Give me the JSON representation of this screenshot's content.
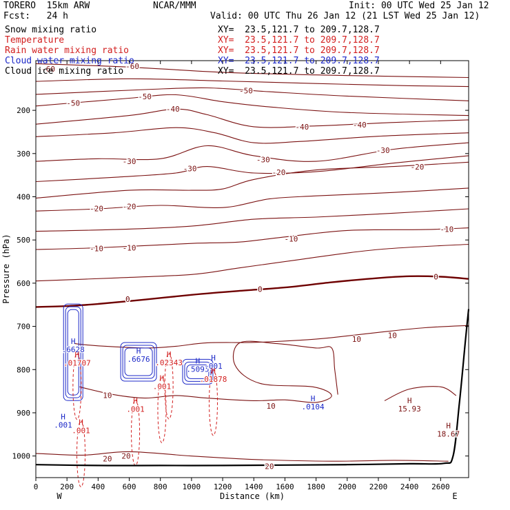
{
  "header": {
    "model": "TORERO  15km ARW",
    "center": "NCAR/MMM",
    "init": "Init: 00 UTC Wed 25 Jan 12",
    "fcst": "Fcst:   24 h",
    "valid": "Valid: 00 UTC Thu 26 Jan 12 (21 LST Wed 25 Jan 12)"
  },
  "colors": {
    "temperature": "#7a1010",
    "freezing": "#6e0000",
    "rain": "#d21e1e",
    "cloud_water": "#1c28c8",
    "terrain": "#000000"
  },
  "legend": [
    {
      "field": "Snow mixing ratio",
      "xy": "XY=  23.5,121.7 to 209.7,128.7",
      "color": "#000000"
    },
    {
      "field": "Temperature",
      "xy": "XY=  23.5,121.7 to 209.7,128.7",
      "color": "#d21e1e"
    },
    {
      "field": "Rain water mixing ratio",
      "xy": "XY=  23.5,121.7 to 209.7,128.7",
      "color": "#d21e1e"
    },
    {
      "field": "Cloud water mixing ratio",
      "xy": "XY=  23.5,121.7 to 209.7,128.7",
      "color": "#1c28c8"
    },
    {
      "field": "Cloud ice mixing ratio",
      "xy": "XY=  23.5,121.7 to 209.7,128.7",
      "color": "#000000"
    }
  ],
  "chart_data": {
    "type": "line",
    "xlabel": "Distance (km)",
    "ylabel": "Pressure (hPa)",
    "xlim": [
      0,
      2780
    ],
    "ylim": [
      1050,
      85
    ],
    "x_ticks": [
      0,
      200,
      400,
      600,
      800,
      1000,
      1200,
      1400,
      1600,
      1800,
      2000,
      2200,
      2400,
      2600
    ],
    "y_ticks": [
      200,
      300,
      400,
      500,
      600,
      700,
      800,
      900,
      1000
    ],
    "end_labels": {
      "left": "W",
      "right": "E"
    },
    "temperature_isotherms": [
      {
        "level": -60,
        "points": [
          [
            0,
            92
          ],
          [
            600,
            100
          ],
          [
            1200,
            112
          ],
          [
            1800,
            118
          ],
          [
            2400,
            122
          ],
          [
            2780,
            124
          ]
        ],
        "labels": [
          {
            "x": 80,
            "p": 104,
            "text": "-60"
          },
          {
            "x": 620,
            "p": 98,
            "text": "-60"
          }
        ]
      },
      {
        "level": -60,
        "points": [
          [
            0,
            133
          ],
          [
            600,
            127
          ],
          [
            1200,
            132
          ],
          [
            1800,
            138
          ],
          [
            2400,
            143
          ],
          [
            2780,
            145
          ]
        ]
      },
      {
        "level": -50,
        "points": [
          [
            0,
            163
          ],
          [
            700,
            152
          ],
          [
            1100,
            148
          ],
          [
            1500,
            157
          ],
          [
            2000,
            167
          ],
          [
            2780,
            178
          ]
        ],
        "labels": [
          {
            "x": 1350,
            "p": 154,
            "text": "-50"
          }
        ]
      },
      {
        "level": -50,
        "points": [
          [
            0,
            190
          ],
          [
            600,
            172
          ],
          [
            900,
            164
          ],
          [
            1200,
            180
          ],
          [
            1500,
            192
          ],
          [
            2000,
            205
          ],
          [
            2780,
            212
          ]
        ],
        "labels": [
          {
            "x": 240,
            "p": 183,
            "text": "-50"
          },
          {
            "x": 700,
            "p": 168,
            "text": "-50"
          }
        ]
      },
      {
        "level": -40,
        "points": [
          [
            0,
            232
          ],
          [
            600,
            212
          ],
          [
            900,
            197
          ],
          [
            1100,
            210
          ],
          [
            1400,
            238
          ],
          [
            1800,
            236
          ],
          [
            2300,
            228
          ],
          [
            2780,
            222
          ]
        ],
        "labels": [
          {
            "x": 880,
            "p": 197,
            "text": "-40"
          },
          {
            "x": 1710,
            "p": 238,
            "text": "-40"
          },
          {
            "x": 2080,
            "p": 233,
            "text": "-40"
          }
        ]
      },
      {
        "level": -40,
        "points": [
          [
            0,
            261
          ],
          [
            500,
            252
          ],
          [
            900,
            240
          ],
          [
            1150,
            252
          ],
          [
            1400,
            275
          ],
          [
            1700,
            272
          ],
          [
            2200,
            260
          ],
          [
            2780,
            252
          ]
        ]
      },
      {
        "level": -30,
        "points": [
          [
            0,
            318
          ],
          [
            400,
            312
          ],
          [
            800,
            312
          ],
          [
            1100,
            282
          ],
          [
            1400,
            305
          ],
          [
            1800,
            318
          ],
          [
            2300,
            290
          ],
          [
            2780,
            275
          ]
        ],
        "labels": [
          {
            "x": 600,
            "p": 318,
            "text": "-30"
          },
          {
            "x": 1460,
            "p": 314,
            "text": "-30"
          },
          {
            "x": 2230,
            "p": 292,
            "text": "-30"
          }
        ]
      },
      {
        "level": -30,
        "points": [
          [
            0,
            365
          ],
          [
            500,
            355
          ],
          [
            900,
            345
          ],
          [
            1100,
            330
          ],
          [
            1400,
            345
          ],
          [
            1800,
            342
          ],
          [
            2300,
            322
          ],
          [
            2780,
            305
          ]
        ],
        "labels": [
          {
            "x": 990,
            "p": 335,
            "text": "-30"
          }
        ]
      },
      {
        "level": -20,
        "points": [
          [
            0,
            403
          ],
          [
            600,
            385
          ],
          [
            1000,
            385
          ],
          [
            1200,
            382
          ],
          [
            1400,
            360
          ],
          [
            1800,
            338
          ],
          [
            2300,
            330
          ],
          [
            2780,
            320
          ]
        ],
        "labels": [
          {
            "x": 1560,
            "p": 343,
            "text": "-20"
          },
          {
            "x": 2450,
            "p": 331,
            "text": "-20"
          }
        ]
      },
      {
        "level": -20,
        "points": [
          [
            0,
            433
          ],
          [
            400,
            428
          ],
          [
            800,
            420
          ],
          [
            1200,
            425
          ],
          [
            1500,
            405
          ],
          [
            1800,
            398
          ],
          [
            2300,
            390
          ],
          [
            2780,
            380
          ]
        ],
        "labels": [
          {
            "x": 390,
            "p": 427,
            "text": "-20"
          },
          {
            "x": 600,
            "p": 422,
            "text": "-20"
          }
        ]
      },
      {
        "level": -10,
        "points": [
          [
            0,
            480
          ],
          [
            500,
            476
          ],
          [
            1000,
            468
          ],
          [
            1400,
            452
          ],
          [
            1800,
            447
          ],
          [
            2300,
            438
          ],
          [
            2780,
            428
          ]
        ]
      },
      {
        "level": -10,
        "points": [
          [
            0,
            522
          ],
          [
            400,
            518
          ],
          [
            1000,
            508
          ],
          [
            1300,
            505
          ],
          [
            1600,
            493
          ],
          [
            2000,
            478
          ],
          [
            2500,
            476
          ],
          [
            2780,
            472
          ]
        ],
        "labels": [
          {
            "x": 390,
            "p": 520,
            "text": "-10"
          },
          {
            "x": 600,
            "p": 518,
            "text": "-10"
          },
          {
            "x": 1640,
            "p": 497,
            "text": "-10"
          },
          {
            "x": 2640,
            "p": 475,
            "text": "-10"
          }
        ]
      },
      {
        "level": -10,
        "points": [
          [
            0,
            595
          ],
          [
            500,
            588
          ],
          [
            1000,
            580
          ],
          [
            1300,
            565
          ],
          [
            1700,
            545
          ],
          [
            2200,
            522
          ],
          [
            2780,
            510
          ]
        ]
      },
      {
        "level": 10,
        "points": [
          [
            250,
            740
          ],
          [
            400,
            745
          ],
          [
            700,
            750
          ],
          [
            900,
            746
          ],
          [
            1100,
            738
          ],
          [
            1400,
            737
          ],
          [
            1700,
            732
          ],
          [
            1900,
            726
          ],
          [
            2200,
            714
          ],
          [
            2500,
            703
          ],
          [
            2780,
            698
          ]
        ],
        "labels": [
          {
            "x": 2060,
            "p": 729,
            "text": "10"
          },
          {
            "x": 2290,
            "p": 721,
            "text": "10"
          }
        ]
      },
      {
        "level": 10,
        "points": [
          [
            280,
            840
          ],
          [
            500,
            858
          ],
          [
            700,
            866
          ],
          [
            900,
            860
          ],
          [
            1100,
            866
          ],
          [
            1400,
            872
          ],
          [
            1600,
            870
          ],
          [
            1800,
            876
          ],
          [
            1900,
            860
          ],
          [
            1780,
            840
          ],
          [
            1440,
            832
          ],
          [
            1280,
            790
          ],
          [
            1310,
            738
          ],
          [
            1550,
            740
          ],
          [
            1800,
            750
          ],
          [
            1900,
            750
          ],
          [
            1920,
            800
          ],
          [
            1940,
            858
          ]
        ],
        "labels": [
          {
            "x": 460,
            "p": 859,
            "text": "10"
          },
          {
            "x": 1510,
            "p": 884,
            "text": "10"
          }
        ]
      },
      {
        "level": 20,
        "points": [
          [
            0,
            994
          ],
          [
            300,
            998
          ],
          [
            600,
            990
          ],
          [
            1000,
            1000
          ],
          [
            1400,
            1008
          ],
          [
            1900,
            1012
          ],
          [
            2300,
            1010
          ],
          [
            2650,
            1012
          ]
        ],
        "labels": [
          {
            "x": 460,
            "p": 1006,
            "text": "20"
          },
          {
            "x": 580,
            "p": 1000,
            "text": "20"
          },
          {
            "x": 1500,
            "p": 1024,
            "text": "20"
          }
        ]
      },
      {
        "level": 0,
        "points": [
          [
            2240,
            872
          ],
          [
            2400,
            845
          ],
          [
            2600,
            840
          ],
          [
            2700,
            860
          ]
        ]
      }
    ],
    "freezing_level": {
      "level": 0,
      "points": [
        [
          0,
          655
        ],
        [
          200,
          653
        ],
        [
          400,
          648
        ],
        [
          700,
          638
        ],
        [
          1000,
          627
        ],
        [
          1300,
          618
        ],
        [
          1600,
          610
        ],
        [
          1900,
          598
        ],
        [
          2200,
          588
        ],
        [
          2400,
          584
        ],
        [
          2600,
          585
        ],
        [
          2780,
          590
        ]
      ],
      "labels": [
        {
          "x": 590,
          "p": 637,
          "text": "0"
        },
        {
          "x": 1440,
          "p": 614,
          "text": "0"
        },
        {
          "x": 2570,
          "p": 585,
          "text": "0"
        }
      ]
    },
    "terrain": {
      "points": [
        [
          0,
          1020
        ],
        [
          400,
          1022
        ],
        [
          800,
          1022
        ],
        [
          1200,
          1022
        ],
        [
          1600,
          1021
        ],
        [
          2000,
          1020
        ],
        [
          2400,
          1018
        ],
        [
          2620,
          1017
        ],
        [
          2680,
          1000
        ],
        [
          2720,
          880
        ],
        [
          2760,
          730
        ],
        [
          2780,
          660
        ]
      ]
    },
    "cloud_water_maxima": [
      {
        "x": 240,
        "p": 760,
        "value": ".6628"
      },
      {
        "x": 660,
        "p": 782,
        "value": ".6676"
      },
      {
        "x": 1040,
        "p": 805,
        "value": ".5095"
      },
      {
        "x": 1780,
        "p": 892,
        "value": ".0104"
      },
      {
        "x": 175,
        "p": 934,
        "value": ".001"
      },
      {
        "x": 1140,
        "p": 798,
        "value": ".001"
      }
    ],
    "rain_maxima": [
      {
        "x": 265,
        "p": 791,
        "value": ".01707"
      },
      {
        "x": 855,
        "p": 790,
        "value": ".02343"
      },
      {
        "x": 810,
        "p": 845,
        "value": ".001"
      },
      {
        "x": 1140,
        "p": 828,
        "value": ".01878"
      },
      {
        "x": 640,
        "p": 898,
        "value": ".001"
      },
      {
        "x": 290,
        "p": 947,
        "value": ".001"
      }
    ],
    "other_maxima": [
      {
        "x": 2400,
        "p": 897,
        "value": "15.93"
      },
      {
        "x": 2650,
        "p": 955,
        "value": "18.67"
      }
    ],
    "maximum_marker": "H"
  }
}
